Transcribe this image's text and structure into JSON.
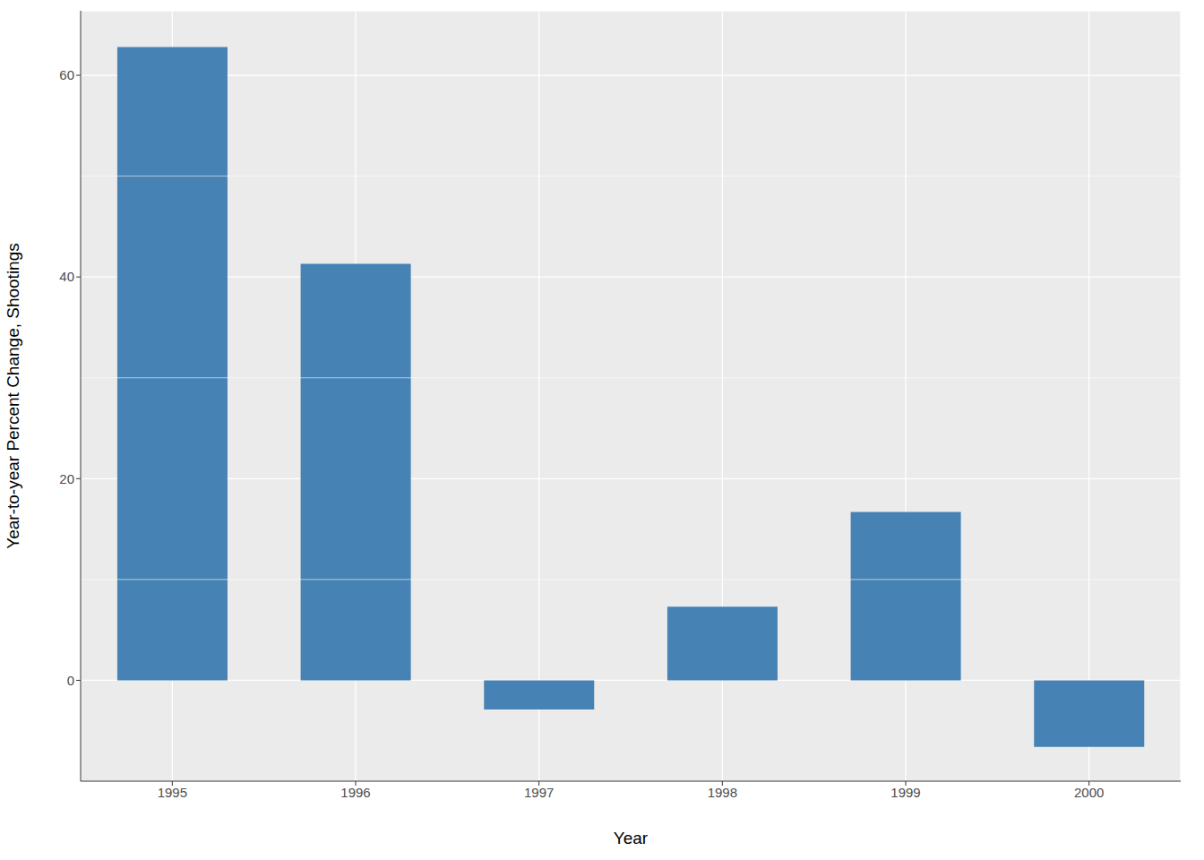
{
  "chart_data": {
    "type": "bar",
    "xlabel": "Year",
    "ylabel": "Year-to-year Percent Change, Shootings",
    "categories": [
      "1995",
      "1996",
      "1997",
      "1998",
      "1999",
      "2000"
    ],
    "values": [
      62.8,
      41.3,
      -2.9,
      7.3,
      16.7,
      -6.6
    ],
    "color": "#4682b4",
    "ylim": [
      -10,
      66.4
    ],
    "yticks": [
      0,
      20,
      40,
      60
    ],
    "grid": true
  }
}
